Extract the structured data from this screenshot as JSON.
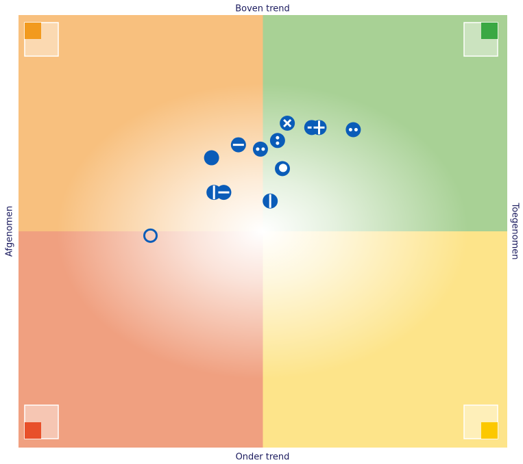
{
  "chart_data": {
    "type": "quadrant",
    "labels": {
      "top": "Boven trend",
      "bottom": "Onder trend",
      "left": "Afgenomen",
      "right": "Toegenomen"
    },
    "xlim": [
      -100,
      100
    ],
    "ylim": [
      -100,
      100
    ],
    "quadrant_colors": {
      "top_left": "#f8c07e",
      "top_right": "#a8d195",
      "bottom_left": "#f0a080",
      "bottom_right": "#fde48a"
    },
    "x": [
      -21,
      -10,
      -1,
      6,
      10,
      20,
      23,
      37,
      8,
      -20,
      -16,
      3,
      -46
    ],
    "series": [
      {
        "color": "#0a5cb8",
        "values": [
          34,
          40,
          38,
          42,
          50,
          48,
          48,
          47,
          29,
          18,
          18,
          14,
          -2
        ],
        "markers": [
          "filled",
          "minus",
          "dots-h",
          "dots-v",
          "cross",
          "theta",
          "plus",
          "dots-h",
          "dot",
          "bar",
          "minus",
          "bar",
          "hollow"
        ]
      }
    ]
  }
}
